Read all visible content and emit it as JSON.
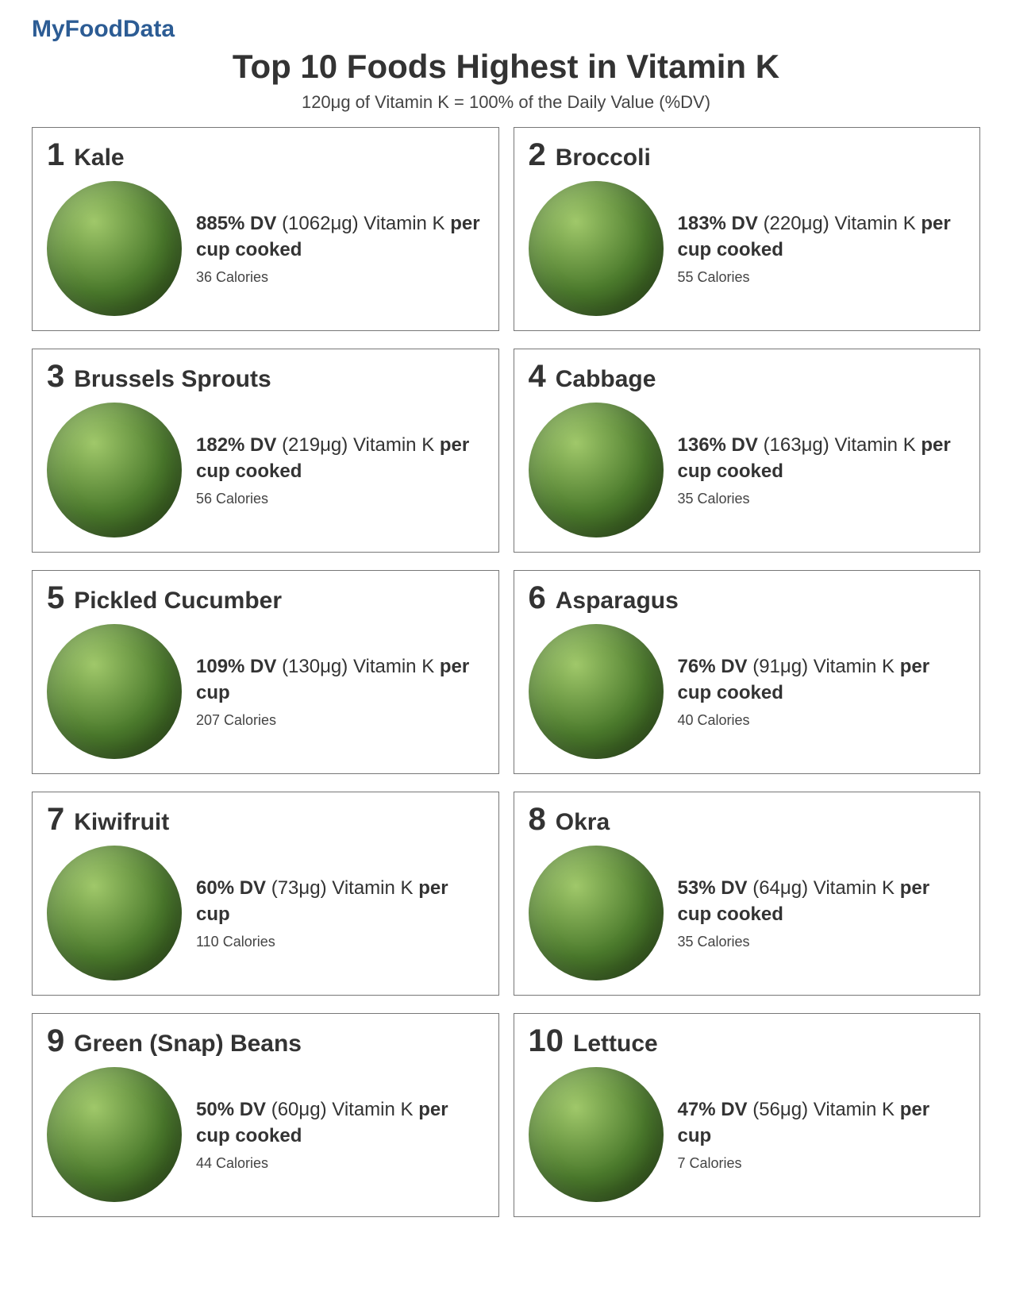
{
  "brand": "MyFoodData",
  "title": "Top 10 Foods Highest in Vitamin K",
  "subtitle": "120μg of Vitamin K = 100% of the Daily Value (%DV)",
  "brand_color": "#2c5c94",
  "image_bg": "radial-gradient(circle at 35% 30%, #a0c86a, #4b7a2c 55%, #274515 100%)",
  "foods": [
    {
      "rank": "1",
      "name": "Kale",
      "dv": "885% DV",
      "amount": "(1062μg)",
      "nutrient": "Vitamin K",
      "serving": "per cup cooked",
      "calories": "36 Calories"
    },
    {
      "rank": "2",
      "name": "Broccoli",
      "dv": "183% DV",
      "amount": "(220μg)",
      "nutrient": "Vitamin K",
      "serving": "per cup cooked",
      "calories": "55 Calories"
    },
    {
      "rank": "3",
      "name": "Brussels Sprouts",
      "dv": "182% DV",
      "amount": "(219μg)",
      "nutrient": "Vitamin K",
      "serving": "per cup cooked",
      "calories": "56 Calories"
    },
    {
      "rank": "4",
      "name": "Cabbage",
      "dv": "136% DV",
      "amount": "(163μg)",
      "nutrient": "Vitamin K",
      "serving": "per cup cooked",
      "calories": "35 Calories"
    },
    {
      "rank": "5",
      "name": "Pickled Cucumber",
      "dv": "109% DV",
      "amount": "(130μg)",
      "nutrient": "Vitamin K",
      "serving": "per cup",
      "calories": "207 Calories"
    },
    {
      "rank": "6",
      "name": "Asparagus",
      "dv": "76% DV",
      "amount": "(91μg)",
      "nutrient": "Vitamin K",
      "serving": "per cup cooked",
      "calories": "40 Calories"
    },
    {
      "rank": "7",
      "name": "Kiwifruit",
      "dv": "60% DV",
      "amount": "(73μg)",
      "nutrient": "Vitamin K",
      "serving": "per cup",
      "calories": "110 Calories"
    },
    {
      "rank": "8",
      "name": "Okra",
      "dv": "53% DV",
      "amount": "(64μg)",
      "nutrient": "Vitamin K",
      "serving": "per cup cooked",
      "calories": "35 Calories"
    },
    {
      "rank": "9",
      "name": "Green (Snap) Beans",
      "dv": "50% DV",
      "amount": "(60μg)",
      "nutrient": "Vitamin K",
      "serving": "per cup cooked",
      "calories": "44 Calories"
    },
    {
      "rank": "10",
      "name": "Lettuce",
      "dv": "47% DV",
      "amount": "(56μg)",
      "nutrient": "Vitamin K",
      "serving": "per cup",
      "calories": "7 Calories"
    }
  ]
}
